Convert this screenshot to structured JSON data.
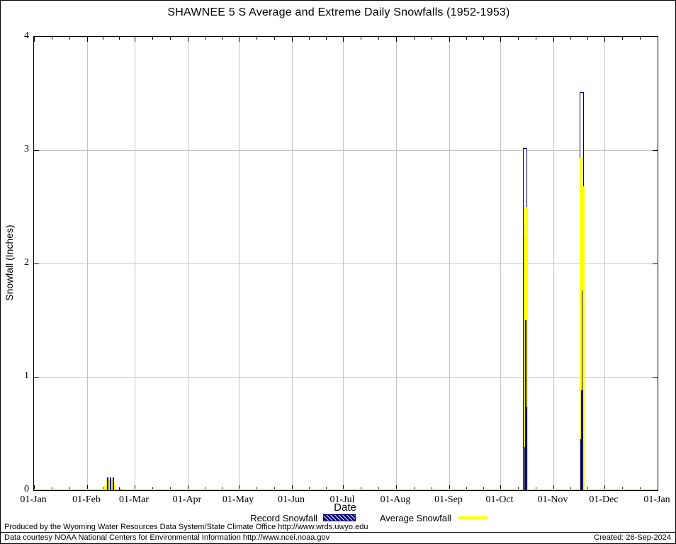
{
  "title": "SHAWNEE 5 S Average and Extreme Daily Snowfalls (1952-1953)",
  "axes": {
    "ylabel": "Snowfall (Inches)",
    "xlabel": "Date",
    "y_ticks": [
      "0",
      "1",
      "2",
      "3",
      "4"
    ],
    "x_tick_labels": [
      "01-Jan",
      "01-Feb",
      "01-Mar",
      "01-Apr",
      "01-May",
      "01-Jun",
      "01-Jul",
      "01-Aug",
      "01-Sep",
      "01-Oct",
      "01-Nov",
      "01-Dec",
      "01-Jan"
    ]
  },
  "legend": {
    "record_label": "Record Snowfall",
    "average_label": "Average Snowfall"
  },
  "footer": {
    "line1": "Produced by the Wyoming Water Resources Data System/State Climate Office http://www.wrds.uwyo.edu",
    "line2": "Data courtesy NOAA National Centers for Environmental Information http://www.ncei.noaa.gov",
    "created": "Created: 26-Sep-2024"
  },
  "colors": {
    "record": "#000080",
    "average": "#ffff00",
    "grid": "#c4c4c4",
    "axis": "#000000",
    "background": "#ffffff"
  },
  "chart_data": {
    "type": "bar",
    "title": "SHAWNEE 5 S Average and Extreme Daily Snowfalls (1952-1953)",
    "xlabel": "Date",
    "ylabel": "Snowfall (Inches)",
    "ylim": [
      0,
      4
    ],
    "x_range": [
      "01-Jan",
      "01-Jan"
    ],
    "grid": true,
    "legend_position": "below",
    "month_day_offsets": [
      0,
      31,
      59,
      90,
      120,
      151,
      181,
      212,
      243,
      273,
      304,
      334,
      365
    ],
    "series": [
      {
        "name": "Record Snowfall",
        "color": "#000080",
        "points": [
          {
            "date": "09-Feb",
            "value": 0.12
          },
          {
            "date": "11-Feb",
            "value": 0.12
          },
          {
            "date": "13-Feb",
            "value": 0.12
          },
          {
            "date": "17-Feb",
            "value": 0.02
          },
          {
            "date": "14-Oct",
            "value": 3.0
          },
          {
            "date": "15-Oct",
            "value": 1.5
          },
          {
            "date": "16-Nov",
            "value": 3.5
          },
          {
            "date": "17-Nov",
            "value": 1.75
          }
        ]
      },
      {
        "name": "Average Snowfall",
        "color": "#ffff00",
        "points": [
          {
            "date": "09-Feb",
            "value": 0.04
          },
          {
            "date": "10-Feb",
            "value": 0.09
          },
          {
            "date": "11-Feb",
            "value": 0.09
          },
          {
            "date": "12-Feb",
            "value": 0.09
          },
          {
            "date": "13-Feb",
            "value": 0.09
          },
          {
            "date": "14-Feb",
            "value": 0.05
          },
          {
            "date": "14-Oct",
            "value": 2.5
          },
          {
            "date": "15-Oct",
            "value": 0.73
          },
          {
            "date": "16-Nov",
            "value": 2.93
          },
          {
            "date": "17-Nov",
            "value": 0.88
          }
        ]
      }
    ],
    "note": "All other days of the year are approximately 0 inches",
    "render_bars": [
      {
        "doy": 0,
        "days": 365,
        "v": 0.012,
        "kind": "avg"
      },
      {
        "doy": 40.6,
        "days": 1.3,
        "v": 0.04,
        "kind": "avg"
      },
      {
        "doy": 41.9,
        "days": 4.2,
        "v": 0.09,
        "kind": "avg"
      },
      {
        "doy": 46.0,
        "days": 1.7,
        "v": 0.05,
        "kind": "avg"
      },
      {
        "doy": 42.7,
        "days": 0.85,
        "v": 0.115,
        "kind": "record"
      },
      {
        "doy": 44.4,
        "days": 0.85,
        "v": 0.115,
        "kind": "record"
      },
      {
        "doy": 46.1,
        "days": 0.85,
        "v": 0.115,
        "kind": "record"
      },
      {
        "doy": 49.8,
        "days": 0.85,
        "v": 0.015,
        "kind": "record"
      },
      {
        "doy": 286.2,
        "days": 2.5,
        "v": 3.02,
        "kind": "record_open"
      },
      {
        "doy": 286.6,
        "days": 2.5,
        "v": 2.25,
        "kind": "avg"
      },
      {
        "doy": 287.2,
        "days": 1.9,
        "v": 2.5,
        "kind": "avg"
      },
      {
        "doy": 287.6,
        "days": 0.62,
        "v": 1.5,
        "kind": "record"
      },
      {
        "doy": 287.4,
        "days": 1.25,
        "v": 0.73,
        "kind": "record"
      },
      {
        "doy": 287.0,
        "days": 1.66,
        "v": 0.38,
        "kind": "record"
      },
      {
        "doy": 319.2,
        "days": 2.5,
        "v": 3.51,
        "kind": "record_open"
      },
      {
        "doy": 319.6,
        "days": 2.5,
        "v": 2.68,
        "kind": "avg"
      },
      {
        "doy": 319.2,
        "days": 1.9,
        "v": 2.93,
        "kind": "avg"
      },
      {
        "doy": 320.4,
        "days": 0.62,
        "v": 1.76,
        "kind": "record"
      },
      {
        "doy": 320.2,
        "days": 1.25,
        "v": 0.88,
        "kind": "record"
      },
      {
        "doy": 319.8,
        "days": 1.66,
        "v": 0.45,
        "kind": "record"
      }
    ]
  }
}
